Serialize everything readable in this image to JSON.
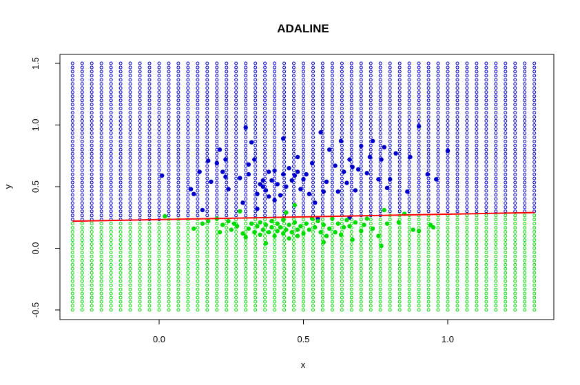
{
  "chart_data": {
    "type": "scatter",
    "title": "ADALINE",
    "xlabel": "x",
    "ylabel": "y",
    "xlim": [
      -0.3,
      1.3
    ],
    "ylim": [
      -0.5,
      1.5
    ],
    "x_ticks": [
      "0.0",
      "0.5",
      "1.0"
    ],
    "x_tick_values": [
      0.0,
      0.5,
      1.0
    ],
    "y_ticks": [
      "-0.5",
      "0.0",
      "0.5",
      "1.0",
      "1.5"
    ],
    "y_tick_values": [
      -0.5,
      0.0,
      0.5,
      1.0,
      1.5
    ],
    "grid": false,
    "legend": "none",
    "colors": {
      "class_above": "#0000cd",
      "class_below": "#00dd00",
      "decision_line": "#ff0000"
    },
    "background_grid": {
      "x_start": -0.3,
      "x_end": 1.3,
      "x_step": 0.0333,
      "y_start": -0.5,
      "y_end": 1.5,
      "y_step": 0.0333,
      "marker": "open-circle"
    },
    "series": [
      {
        "role": "decision-boundary",
        "type": "line",
        "x": [
          -0.3,
          1.3
        ],
        "y": [
          0.22,
          0.29
        ]
      },
      {
        "role": "data-above",
        "marker": "filled-circle",
        "points": [
          [
            0.01,
            0.59
          ],
          [
            0.11,
            0.48
          ],
          [
            0.12,
            0.44
          ],
          [
            0.14,
            0.62
          ],
          [
            0.15,
            0.31
          ],
          [
            0.17,
            0.71
          ],
          [
            0.18,
            0.54
          ],
          [
            0.2,
            0.69
          ],
          [
            0.21,
            0.8
          ],
          [
            0.22,
            0.62
          ],
          [
            0.23,
            0.58
          ],
          [
            0.23,
            0.72
          ],
          [
            0.24,
            0.48
          ],
          [
            0.28,
            0.57
          ],
          [
            0.29,
            0.37
          ],
          [
            0.3,
            0.98
          ],
          [
            0.31,
            0.6
          ],
          [
            0.31,
            0.68
          ],
          [
            0.32,
            0.86
          ],
          [
            0.33,
            0.72
          ],
          [
            0.34,
            0.32
          ],
          [
            0.34,
            0.44
          ],
          [
            0.35,
            0.52
          ],
          [
            0.36,
            0.55
          ],
          [
            0.36,
            0.5
          ],
          [
            0.37,
            0.47
          ],
          [
            0.38,
            0.62
          ],
          [
            0.38,
            0.42
          ],
          [
            0.39,
            0.55
          ],
          [
            0.4,
            0.63
          ],
          [
            0.4,
            0.39
          ],
          [
            0.41,
            0.52
          ],
          [
            0.42,
            0.43
          ],
          [
            0.43,
            0.6
          ],
          [
            0.43,
            0.89
          ],
          [
            0.44,
            0.5
          ],
          [
            0.45,
            0.65
          ],
          [
            0.46,
            0.55
          ],
          [
            0.47,
            0.59
          ],
          [
            0.48,
            0.62
          ],
          [
            0.48,
            0.74
          ],
          [
            0.49,
            0.48
          ],
          [
            0.5,
            0.56
          ],
          [
            0.51,
            0.6
          ],
          [
            0.52,
            0.44
          ],
          [
            0.53,
            0.69
          ],
          [
            0.54,
            0.37
          ],
          [
            0.55,
            0.24
          ],
          [
            0.56,
            0.94
          ],
          [
            0.57,
            0.46
          ],
          [
            0.58,
            0.54
          ],
          [
            0.59,
            0.8
          ],
          [
            0.61,
            0.67
          ],
          [
            0.62,
            0.46
          ],
          [
            0.63,
            0.87
          ],
          [
            0.64,
            0.62
          ],
          [
            0.65,
            0.53
          ],
          [
            0.66,
            0.72
          ],
          [
            0.66,
            0.25
          ],
          [
            0.67,
            0.66
          ],
          [
            0.68,
            0.47
          ],
          [
            0.69,
            0.64
          ],
          [
            0.7,
            0.83
          ],
          [
            0.72,
            0.61
          ],
          [
            0.73,
            0.74
          ],
          [
            0.74,
            0.87
          ],
          [
            0.76,
            0.56
          ],
          [
            0.77,
            0.72
          ],
          [
            0.78,
            0.82
          ],
          [
            0.79,
            0.49
          ],
          [
            0.8,
            0.56
          ],
          [
            0.82,
            0.77
          ],
          [
            0.86,
            0.46
          ],
          [
            0.87,
            0.74
          ],
          [
            0.9,
            0.99
          ],
          [
            0.93,
            0.6
          ],
          [
            0.96,
            0.56
          ],
          [
            1.0,
            0.79
          ]
        ]
      },
      {
        "role": "data-below",
        "marker": "filled-circle",
        "points": [
          [
            0.02,
            0.26
          ],
          [
            0.12,
            0.16
          ],
          [
            0.15,
            0.2
          ],
          [
            0.17,
            0.22
          ],
          [
            0.2,
            0.24
          ],
          [
            0.21,
            0.13
          ],
          [
            0.22,
            0.19
          ],
          [
            0.24,
            0.22
          ],
          [
            0.25,
            0.15
          ],
          [
            0.26,
            0.2
          ],
          [
            0.27,
            0.18
          ],
          [
            0.28,
            0.3
          ],
          [
            0.29,
            0.12
          ],
          [
            0.3,
            0.09
          ],
          [
            0.31,
            0.16
          ],
          [
            0.32,
            0.2
          ],
          [
            0.33,
            0.13
          ],
          [
            0.34,
            0.18
          ],
          [
            0.35,
            0.21
          ],
          [
            0.35,
            0.11
          ],
          [
            0.36,
            0.15
          ],
          [
            0.37,
            0.04
          ],
          [
            0.37,
            0.19
          ],
          [
            0.38,
            0.13
          ],
          [
            0.39,
            0.17
          ],
          [
            0.39,
            0.22
          ],
          [
            0.4,
            0.1
          ],
          [
            0.41,
            0.14
          ],
          [
            0.41,
            0.2
          ],
          [
            0.42,
            0.17
          ],
          [
            0.43,
            0.12
          ],
          [
            0.43,
            0.23
          ],
          [
            0.44,
            0.15
          ],
          [
            0.44,
            0.29
          ],
          [
            0.45,
            0.19
          ],
          [
            0.45,
            0.08
          ],
          [
            0.46,
            0.13
          ],
          [
            0.47,
            0.21
          ],
          [
            0.47,
            0.35
          ],
          [
            0.48,
            0.15
          ],
          [
            0.48,
            0.1
          ],
          [
            0.49,
            0.18
          ],
          [
            0.5,
            0.12
          ],
          [
            0.51,
            0.2
          ],
          [
            0.52,
            0.15
          ],
          [
            0.53,
            0.24
          ],
          [
            0.54,
            0.17
          ],
          [
            0.55,
            0.22
          ],
          [
            0.56,
            0.13
          ],
          [
            0.57,
            0.05
          ],
          [
            0.57,
            0.19
          ],
          [
            0.58,
            0.1
          ],
          [
            0.59,
            0.16
          ],
          [
            0.6,
            0.24
          ],
          [
            0.61,
            0.13
          ],
          [
            0.62,
            0.2
          ],
          [
            0.63,
            0.11
          ],
          [
            0.64,
            0.17
          ],
          [
            0.65,
            0.23
          ],
          [
            0.66,
            0.18
          ],
          [
            0.67,
            0.07
          ],
          [
            0.68,
            0.21
          ],
          [
            0.7,
            0.14
          ],
          [
            0.71,
            0.19
          ],
          [
            0.72,
            0.24
          ],
          [
            0.74,
            0.16
          ],
          [
            0.76,
            0.1
          ],
          [
            0.77,
            0.02
          ],
          [
            0.78,
            0.31
          ],
          [
            0.79,
            0.2
          ],
          [
            0.83,
            0.21
          ],
          [
            0.85,
            0.28
          ],
          [
            0.88,
            0.15
          ],
          [
            0.9,
            0.14
          ],
          [
            0.94,
            0.19
          ],
          [
            0.95,
            0.17
          ]
        ]
      }
    ]
  }
}
